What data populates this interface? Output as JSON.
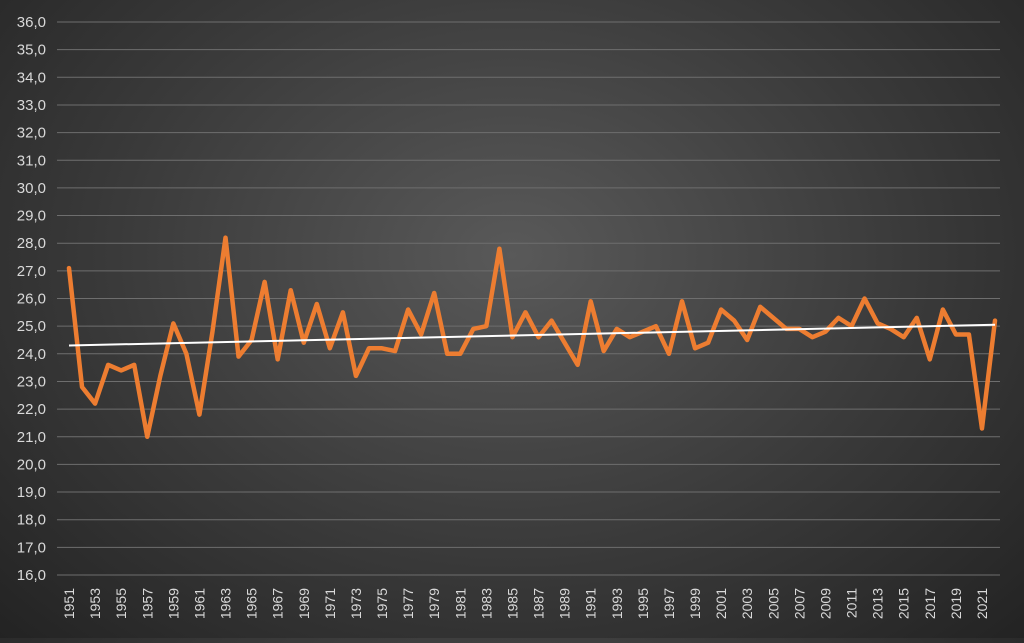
{
  "chart_data": {
    "type": "line",
    "title": "",
    "xlabel": "",
    "ylabel": "",
    "ylim": [
      16,
      36
    ],
    "y_tick_step": 1,
    "y_tick_labels": [
      "16,0",
      "17,0",
      "18,0",
      "19,0",
      "20,0",
      "21,0",
      "22,0",
      "23,0",
      "24,0",
      "25,0",
      "26,0",
      "27,0",
      "28,0",
      "29,0",
      "30,0",
      "31,0",
      "32,0",
      "33,0",
      "34,0",
      "35,0",
      "36,0"
    ],
    "x_tick_labels": [
      "1951",
      "1953",
      "1955",
      "1957",
      "1959",
      "1961",
      "1963",
      "1965",
      "1967",
      "1969",
      "1971",
      "1973",
      "1975",
      "1977",
      "1979",
      "1981",
      "1983",
      "1985",
      "1987",
      "1989",
      "1991",
      "1993",
      "1995",
      "1997",
      "1999",
      "2001",
      "2003",
      "2005",
      "2007",
      "2009",
      "2011",
      "2013",
      "2015",
      "2017",
      "2019",
      "2021"
    ],
    "grid": true,
    "legend": "none",
    "series": [
      {
        "color": "#ed7d31",
        "x": [
          1951,
          1952,
          1953,
          1954,
          1955,
          1956,
          1957,
          1958,
          1959,
          1960,
          1961,
          1962,
          1963,
          1964,
          1965,
          1966,
          1967,
          1968,
          1969,
          1970,
          1971,
          1972,
          1973,
          1974,
          1975,
          1976,
          1977,
          1978,
          1979,
          1980,
          1981,
          1982,
          1983,
          1984,
          1985,
          1986,
          1987,
          1988,
          1989,
          1990,
          1991,
          1992,
          1993,
          1994,
          1995,
          1996,
          1997,
          1998,
          1999,
          2000,
          2001,
          2002,
          2003,
          2004,
          2005,
          2006,
          2007,
          2008,
          2009,
          2010,
          2011,
          2012,
          2013,
          2014,
          2015,
          2016,
          2017,
          2018,
          2019,
          2020,
          2021,
          2022
        ],
        "values": [
          27.1,
          22.8,
          22.2,
          23.6,
          23.4,
          23.6,
          21.0,
          23.2,
          25.1,
          24.0,
          21.8,
          24.8,
          28.2,
          23.9,
          24.5,
          26.6,
          23.8,
          26.3,
          24.4,
          25.8,
          24.2,
          25.5,
          23.2,
          24.2,
          24.2,
          24.1,
          25.6,
          24.7,
          26.2,
          24.0,
          24.0,
          24.9,
          25.0,
          27.8,
          24.6,
          25.5,
          24.6,
          25.2,
          24.4,
          23.6,
          25.9,
          24.1,
          24.9,
          24.6,
          24.8,
          25.0,
          24.0,
          25.9,
          24.2,
          24.4,
          25.6,
          25.2,
          24.5,
          25.7,
          25.3,
          24.9,
          24.9,
          24.6,
          24.8,
          25.3,
          25.0,
          26.0,
          25.1,
          24.9,
          24.6,
          25.3,
          23.8,
          25.6,
          24.7,
          24.7,
          21.3,
          25.2
        ]
      }
    ],
    "trendline": {
      "type": "linear",
      "color": "#ffffff",
      "x": [
        1951,
        2022
      ],
      "values": [
        24.3,
        25.05
      ]
    }
  }
}
